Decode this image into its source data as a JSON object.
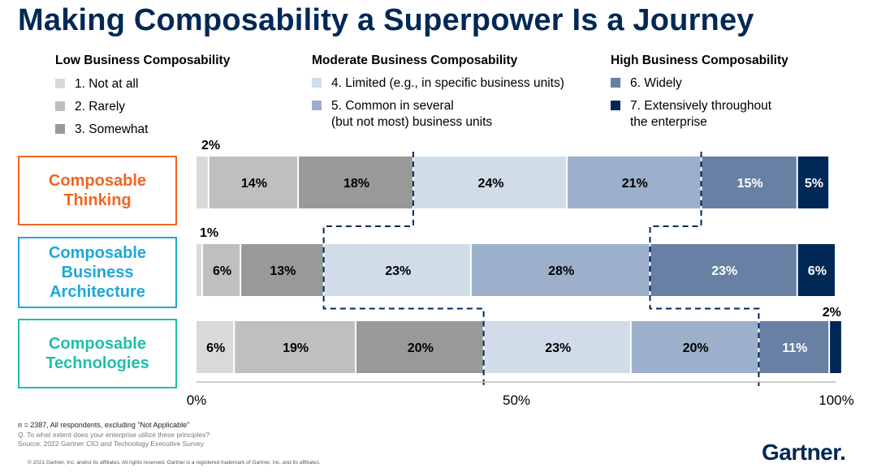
{
  "title": "Making Composability a Superpower Is a Journey",
  "legend": {
    "groups": [
      {
        "heading": "Low Business Composability",
        "items": [
          {
            "label": "1. Not at all",
            "color": "#d9d9d9"
          },
          {
            "label": "2. Rarely",
            "color": "#bfbfbf"
          },
          {
            "label": "3. Somewhat",
            "color": "#979a97"
          }
        ]
      },
      {
        "heading": "Moderate Business Composability",
        "items": [
          {
            "label_lines": [
              "4. Limited (e.g., in specific business units)"
            ],
            "color": "#d0dde8"
          },
          {
            "label_lines": [
              "5. Common in several",
              "(but not most) business units"
            ],
            "color": "#9cb0cb"
          }
        ]
      },
      {
        "heading": "High Business Composability",
        "items": [
          {
            "label_lines": [
              "6. Widely"
            ],
            "color": "#6880a4"
          },
          {
            "label_lines": [
              "7. Extensively throughout",
              "the enterprise"
            ],
            "color": "#002856"
          }
        ]
      }
    ]
  },
  "rows": [
    {
      "label_lines": [
        "Composable",
        "Thinking"
      ],
      "color": "#f26522"
    },
    {
      "label_lines": [
        "Composable",
        "Business",
        "Architecture"
      ],
      "color": "#1fa6d9"
    },
    {
      "label_lines": [
        "Composable",
        "Technologies"
      ],
      "color": "#1ebfaa"
    }
  ],
  "chart_data": {
    "type": "bar",
    "orientation": "horizontal",
    "stacked": true,
    "categories": [
      "Composable Thinking",
      "Composable Business Architecture",
      "Composable Technologies"
    ],
    "series": [
      {
        "name": "1. Not at all",
        "values": [
          2,
          1,
          6
        ],
        "labels": [
          "2%",
          "1%",
          "6%"
        ]
      },
      {
        "name": "2. Rarely",
        "values": [
          14,
          6,
          19
        ],
        "labels": [
          "14%",
          "6%",
          "19%"
        ]
      },
      {
        "name": "3. Somewhat",
        "values": [
          18,
          13,
          20
        ],
        "labels": [
          "18%",
          "13%",
          "20%"
        ]
      },
      {
        "name": "4. Limited (e.g., in specific business units)",
        "values": [
          24,
          23,
          23
        ],
        "labels": [
          "24%",
          "23%",
          "23%"
        ]
      },
      {
        "name": "5. Common in several (but not most) business units",
        "values": [
          21,
          28,
          20
        ],
        "labels": [
          "21%",
          "28%",
          "20%"
        ]
      },
      {
        "name": "6. Widely",
        "values": [
          15,
          23,
          11
        ],
        "labels": [
          "15%",
          "23%",
          "11%"
        ]
      },
      {
        "name": "7. Extensively throughout the enterprise",
        "values": [
          5,
          6,
          2
        ],
        "labels": [
          "5%",
          "6%",
          "2%"
        ]
      }
    ],
    "xlim": [
      0,
      100
    ],
    "ticks": [
      "0%",
      "50%",
      "100%"
    ],
    "tick_values": [
      0,
      50,
      100
    ]
  },
  "footnotes": {
    "n": "n = 2387, All respondents, excluding \"Not Applicable\"",
    "q": "Q. To what extent does your enterprise utilize these principles?",
    "source": "Source: 2022 Gartner CIO and Technology Executive Survey"
  },
  "copyright": "© 2021 Gartner, Inc. and/or its affiliates. All rights reserved. Gartner is a registered trademark of Gartner, Inc. and its affiliates.",
  "logo": "Gartner"
}
